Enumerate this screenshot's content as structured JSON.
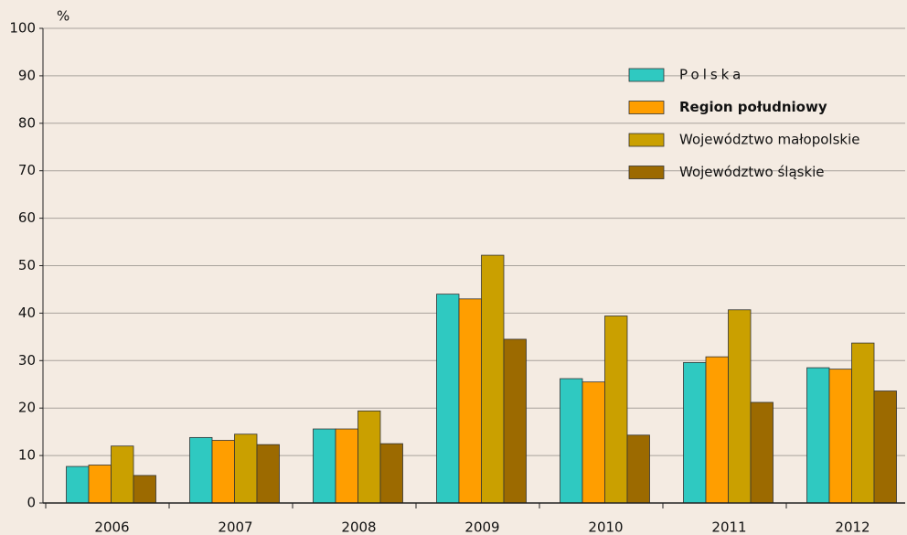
{
  "chart_data": {
    "type": "bar",
    "y_unit": "%",
    "categories": [
      "2006",
      "2007",
      "2008",
      "2009",
      "2010",
      "2011",
      "2012"
    ],
    "series": [
      {
        "name": "Polska",
        "color": "#2fc9c1",
        "values": [
          7.7,
          13.8,
          15.6,
          44,
          26.2,
          29.6,
          28.5
        ]
      },
      {
        "name": "Region południowy",
        "color": "#ff9e00",
        "values": [
          8,
          13.2,
          15.6,
          43,
          25.5,
          30.8,
          28.2
        ]
      },
      {
        "name": "Województwo małopolskie",
        "color": "#caa000",
        "values": [
          12,
          14.5,
          19.4,
          52.2,
          39.4,
          40.7,
          33.7
        ]
      },
      {
        "name": "Województwo śląskie",
        "color": "#9c6a00",
        "values": [
          5.8,
          12.3,
          12.5,
          34.5,
          14.3,
          21.2,
          23.6
        ]
      }
    ],
    "ylim": [
      0,
      100
    ],
    "yticks": [
      0,
      10,
      20,
      30,
      40,
      50,
      60,
      70,
      80,
      90,
      100
    ],
    "grid": true,
    "legend": "upper right"
  }
}
